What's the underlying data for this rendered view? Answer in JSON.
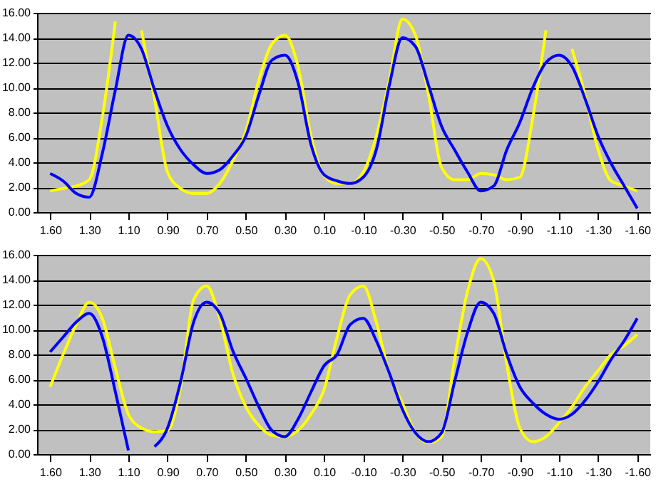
{
  "chart_data": [
    {
      "type": "line",
      "categories": [
        "1.60",
        null,
        null,
        "1.30",
        null,
        null,
        "1.10",
        null,
        null,
        "0.90",
        null,
        null,
        "0.70",
        null,
        null,
        "0.50",
        null,
        null,
        "0.30",
        null,
        null,
        "0.10",
        null,
        null,
        "-0.10",
        null,
        null,
        "-0.30",
        null,
        null,
        "-0.50",
        null,
        null,
        "-0.70",
        null,
        null,
        "-0.90",
        null,
        null,
        "-1.10",
        null,
        null,
        "-1.30",
        null,
        null,
        "-1.60"
      ],
      "series": [
        {
          "color": "#ffff00",
          "values": [
            1.7,
            1.9,
            2.1,
            2.6,
            7.6,
            15.3,
            null,
            14.6,
            9.1,
            3.2,
            1.9,
            1.5,
            1.5,
            2.3,
            4.1,
            6.5,
            10.6,
            13.5,
            14.2,
            11.7,
            6.1,
            2.9,
            2.3,
            2.3,
            3.2,
            6.1,
            10.6,
            15.5,
            14.2,
            9.4,
            3.6,
            2.6,
            2.6,
            3.1,
            3.0,
            2.6,
            2.8,
            7.6,
            14.6,
            null,
            13.1,
            9.4,
            5.0,
            2.5,
            2.1,
            1.7
          ]
        },
        {
          "color": "#0000ff",
          "values": [
            3.1,
            2.5,
            1.5,
            1.2,
            4.7,
            9.8,
            14.2,
            13.1,
            9.8,
            6.9,
            5.0,
            3.8,
            3.1,
            3.4,
            4.5,
            6.1,
            9.4,
            12.2,
            12.6,
            10.4,
            5.4,
            3.0,
            2.5,
            2.3,
            2.8,
            5.0,
            10.2,
            14.0,
            13.3,
            10.2,
            6.9,
            5.0,
            3.2,
            1.7,
            2.1,
            5.0,
            7.2,
            10.0,
            12.0,
            12.6,
            11.7,
            9.1,
            6.1,
            3.9,
            2.1,
            0.3
          ]
        }
      ],
      "ylim": [
        0,
        16
      ],
      "yticks": [
        {
          "value": 0,
          "label": "0.00"
        },
        {
          "value": 2,
          "label": "2.00"
        },
        {
          "value": 4,
          "label": "4.00"
        },
        {
          "value": 6,
          "label": "6.00"
        },
        {
          "value": 8,
          "label": "8.00"
        },
        {
          "value": 10,
          "label": "10.00"
        },
        {
          "value": 12,
          "label": "12.00"
        },
        {
          "value": 14,
          "label": "14.00"
        },
        {
          "value": 16,
          "label": "16.00"
        }
      ],
      "grid": "y",
      "legend": false
    },
    {
      "type": "line",
      "categories": [
        "1.60",
        null,
        null,
        "1.30",
        null,
        null,
        "1.10",
        null,
        null,
        "0.90",
        null,
        null,
        "0.70",
        null,
        null,
        "0.50",
        null,
        null,
        "0.30",
        null,
        null,
        "0.10",
        null,
        null,
        "-0.10",
        null,
        null,
        "-0.30",
        null,
        null,
        "-0.50",
        null,
        null,
        "-0.70",
        null,
        null,
        "-0.90",
        null,
        null,
        "-1.10",
        null,
        null,
        "-1.30",
        null,
        null,
        "-1.60"
      ],
      "series": [
        {
          "color": "#ffff00",
          "values": [
            5.4,
            8.0,
            10.4,
            12.2,
            10.9,
            6.9,
            3.2,
            2.1,
            1.8,
            1.9,
            5.4,
            12.4,
            13.5,
            10.9,
            6.5,
            3.8,
            2.3,
            1.5,
            1.4,
            1.9,
            3.2,
            5.2,
            9.4,
            12.8,
            13.5,
            10.6,
            6.5,
            4.1,
            1.7,
            0.9,
            1.4,
            7.6,
            13.1,
            15.7,
            13.9,
            7.2,
            2.1,
            1.0,
            1.4,
            2.5,
            3.8,
            5.4,
            6.7,
            8.0,
            8.7,
            9.6
          ]
        },
        {
          "color": "#0000ff",
          "values": [
            8.2,
            9.4,
            10.6,
            11.3,
            9.4,
            5.0,
            0.3,
            null,
            0.6,
            2.1,
            5.8,
            10.6,
            12.2,
            11.3,
            8.3,
            6.1,
            3.8,
            1.9,
            1.4,
            2.8,
            5.0,
            7.1,
            8.0,
            10.4,
            10.9,
            9.1,
            6.5,
            3.6,
            1.7,
            1.0,
            1.7,
            5.8,
            9.8,
            12.2,
            11.3,
            8.0,
            5.4,
            4.1,
            3.2,
            2.8,
            3.2,
            4.3,
            5.8,
            7.6,
            9.1,
            10.9
          ]
        }
      ],
      "ylim": [
        0,
        16
      ],
      "yticks": [
        {
          "value": 0,
          "label": "0.00"
        },
        {
          "value": 2,
          "label": "2.00"
        },
        {
          "value": 4,
          "label": "4.00"
        },
        {
          "value": 6,
          "label": "6.00"
        },
        {
          "value": 8,
          "label": "8.00"
        },
        {
          "value": 10,
          "label": "10.00"
        },
        {
          "value": 12,
          "label": "12.00"
        },
        {
          "value": 14,
          "label": "14.00"
        },
        {
          "value": 16,
          "label": "16.00"
        }
      ],
      "grid": "y",
      "legend": false
    }
  ]
}
